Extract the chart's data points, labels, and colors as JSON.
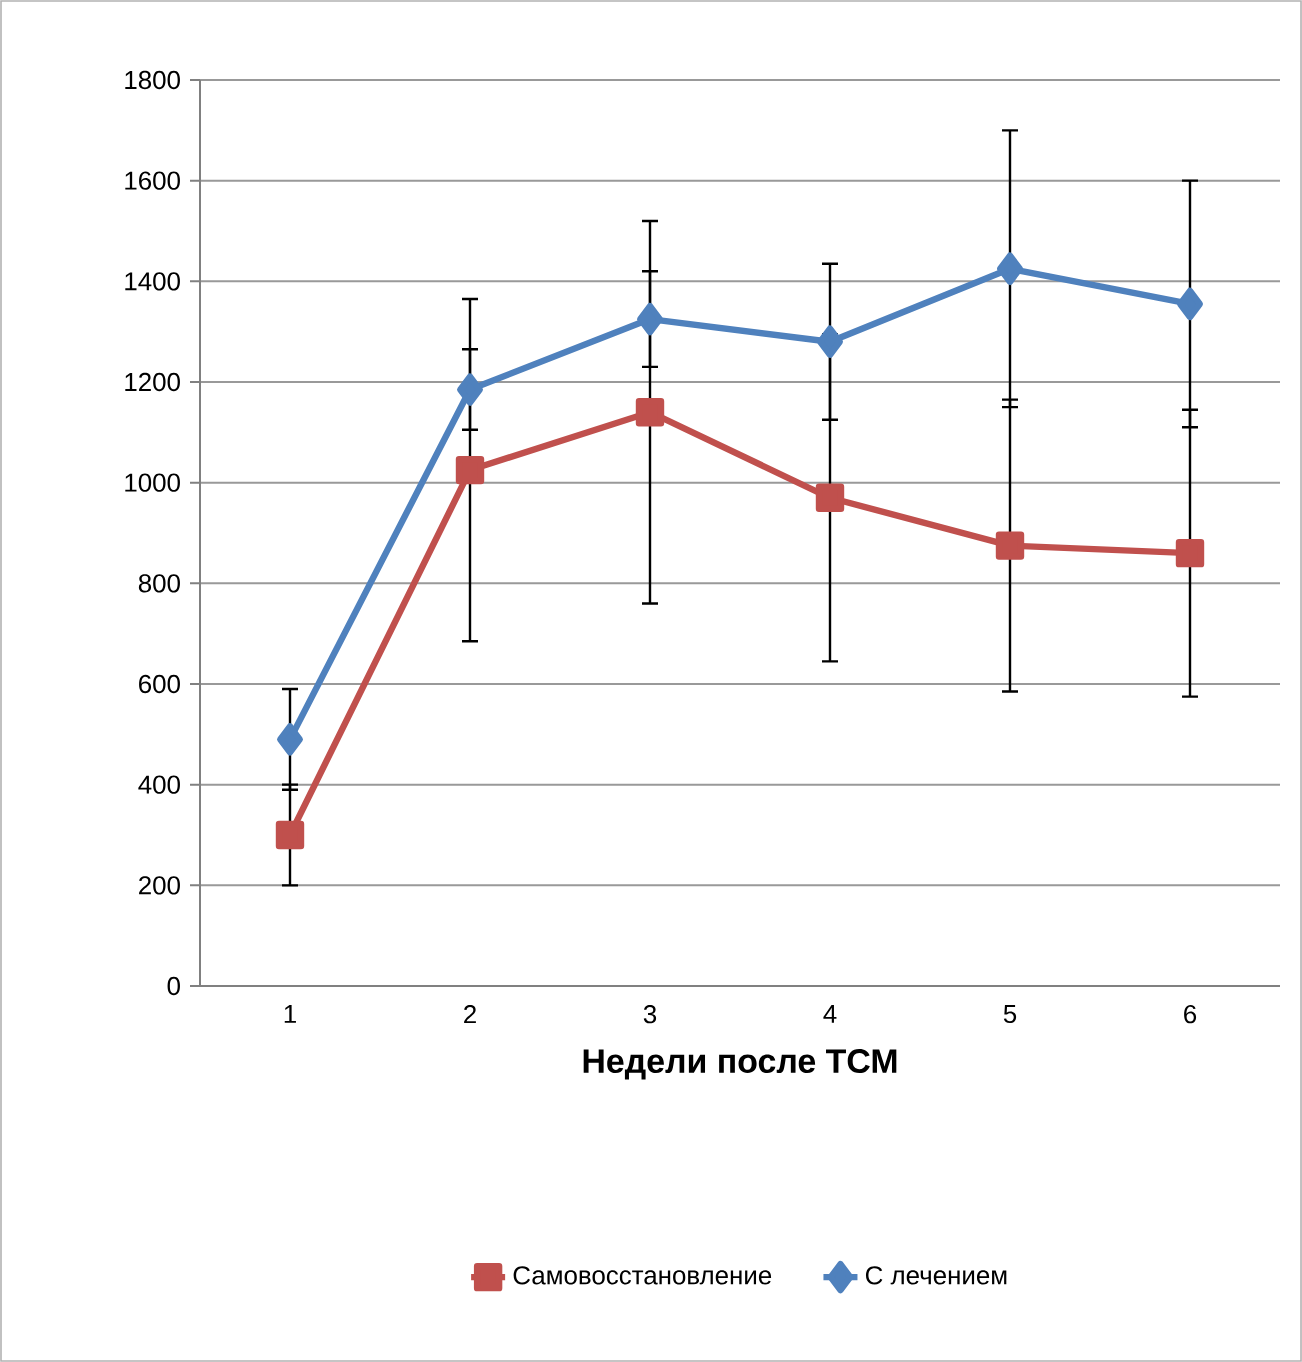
{
  "chart_data": {
    "type": "line",
    "xlabel": "Недели после ТСМ",
    "categories": [
      "1",
      "2",
      "3",
      "4",
      "5",
      "6"
    ],
    "series": [
      {
        "name": "Самовосстановление",
        "color": "#c0504d",
        "marker": "square",
        "values": [
          300,
          1025,
          1140,
          970,
          875,
          860
        ],
        "errors": [
          100,
          340,
          380,
          325,
          290,
          285
        ]
      },
      {
        "name": "С лечением",
        "color": "#4f81bd",
        "marker": "diamond",
        "values": [
          490,
          1185,
          1325,
          1280,
          1425,
          1355
        ],
        "errors": [
          100,
          80,
          95,
          155,
          275,
          245
        ]
      }
    ],
    "ylim": [
      0,
      1800
    ],
    "yticks": [
      0,
      200,
      400,
      600,
      800,
      1000,
      1200,
      1400,
      1600,
      1800
    ],
    "grid": "y",
    "legend": "bottom",
    "line_style": "solid"
  }
}
